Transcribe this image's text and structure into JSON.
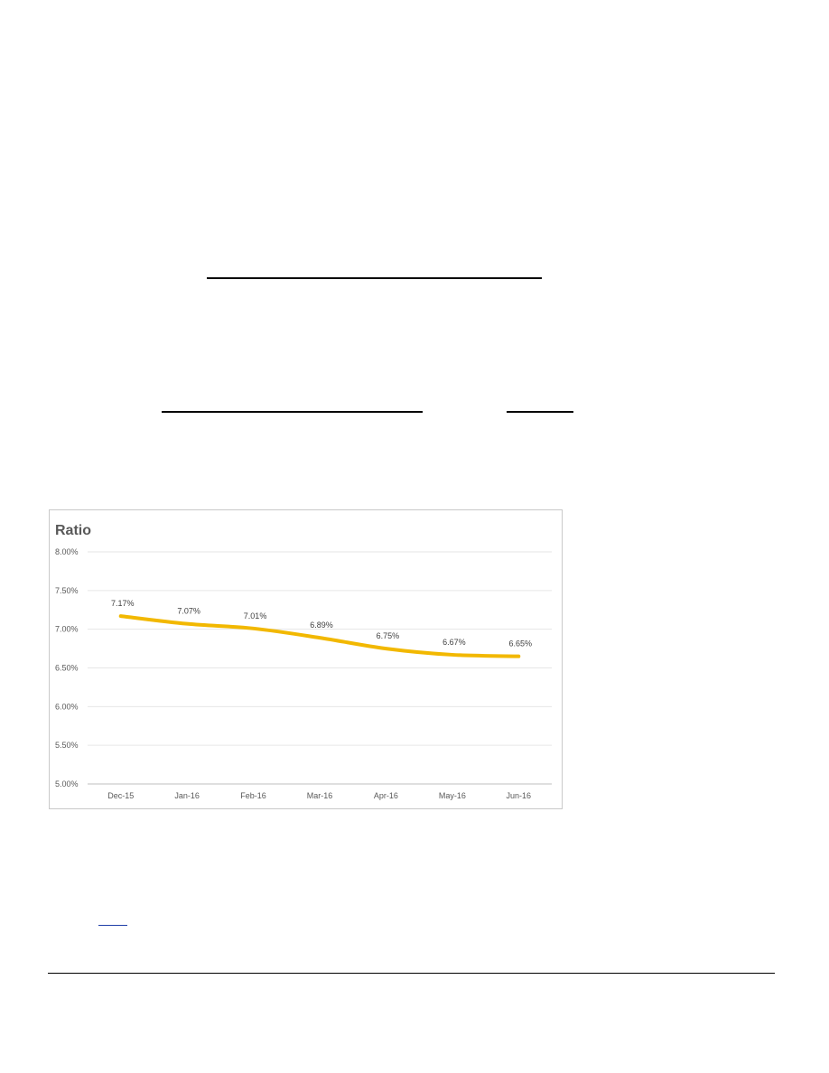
{
  "chart_data": {
    "type": "line",
    "title": "Ratio",
    "xlabel": "",
    "ylabel": "",
    "categories": [
      "Dec-15",
      "Jan-16",
      "Feb-16",
      "Mar-16",
      "Apr-16",
      "May-16",
      "Jun-16"
    ],
    "series": [
      {
        "values": [
          7.17,
          7.07,
          7.01,
          6.89,
          6.75,
          6.67,
          6.65
        ],
        "labels": [
          "7.17%",
          "7.07%",
          "7.01%",
          "6.89%",
          "6.75%",
          "6.67%",
          "6.65%"
        ],
        "color": "#f2b800"
      }
    ],
    "ylim": [
      5.0,
      8.0
    ],
    "yticks": [
      "5.00%",
      "5.50%",
      "6.00%",
      "6.50%",
      "7.00%",
      "7.50%",
      "8.00%"
    ],
    "grid": true,
    "legend": "none"
  }
}
